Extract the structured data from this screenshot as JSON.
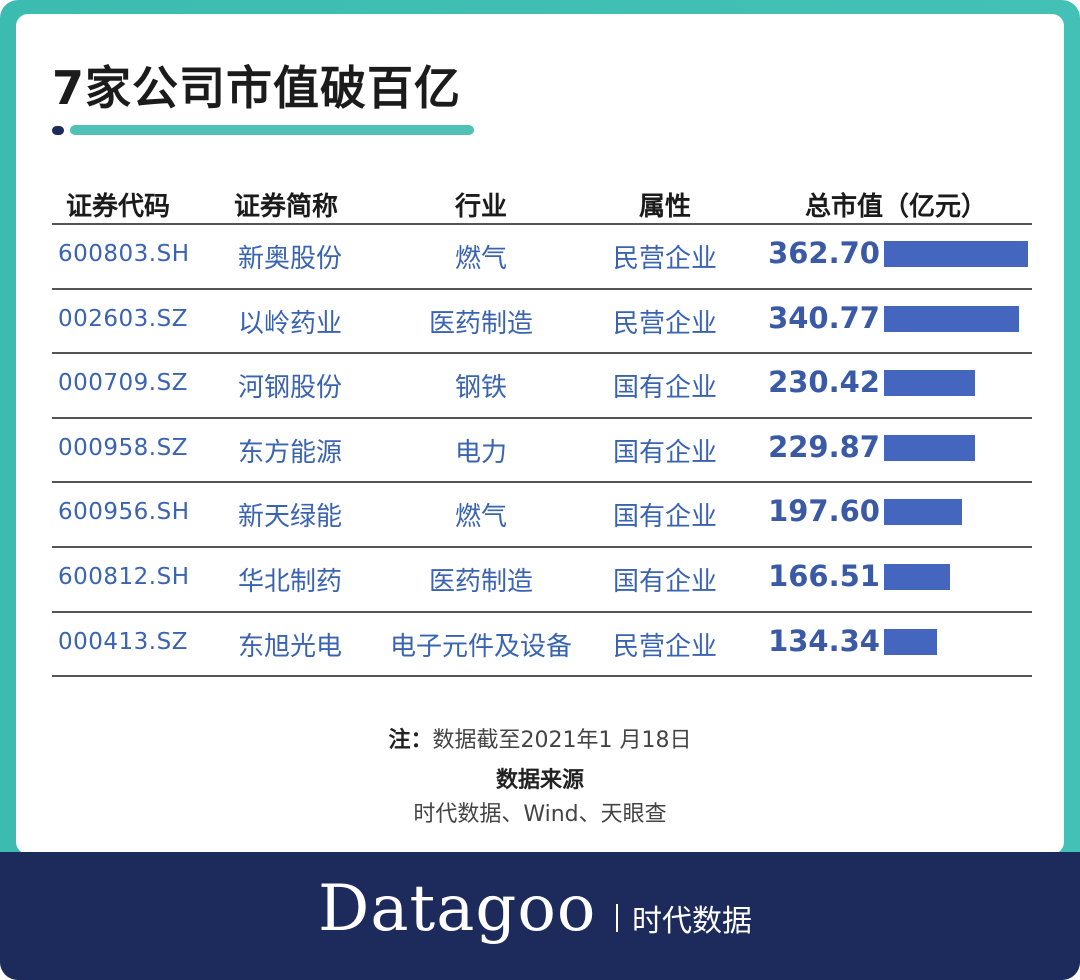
{
  "title": "7家公司市值破百亿",
  "table": {
    "headers": [
      "证券代码",
      "证券简称",
      "行业",
      "属性",
      "总市值（亿元）"
    ],
    "rows": [
      {
        "code": "600803.SH",
        "name": "新奥股份",
        "industry": "燃气",
        "type": "民营企业",
        "value": "362.70"
      },
      {
        "code": "002603.SZ",
        "name": "以岭药业",
        "industry": "医药制造",
        "type": "民营企业",
        "value": "340.77"
      },
      {
        "code": "000709.SZ",
        "name": "河钢股份",
        "industry": "钢铁",
        "type": "国有企业",
        "value": "230.42"
      },
      {
        "code": "000958.SZ",
        "name": "东方能源",
        "industry": "电力",
        "type": "国有企业",
        "value": "229.87"
      },
      {
        "code": "600956.SH",
        "name": "新天绿能",
        "industry": "燃气",
        "type": "国有企业",
        "value": "197.60"
      },
      {
        "code": "600812.SH",
        "name": "华北制药",
        "industry": "医药制造",
        "type": "国有企业",
        "value": "166.51"
      },
      {
        "code": "000413.SZ",
        "name": "东旭光电",
        "industry": "电子元件及设备",
        "type": "民营企业",
        "value": "134.34"
      }
    ]
  },
  "chart_data": {
    "type": "bar",
    "categories": [
      "新奥股份",
      "以岭药业",
      "河钢股份",
      "东方能源",
      "新天绿能",
      "华北制药",
      "东旭光电"
    ],
    "values": [
      362.7,
      340.77,
      230.42,
      229.87,
      197.6,
      166.51,
      134.34
    ],
    "title": "7家公司市值破百亿",
    "ylabel": "总市值（亿元）"
  },
  "note": {
    "label": "注：",
    "text": "数据截至2021年1 月18日",
    "source_label": "数据来源",
    "source_text": "时代数据、Wind、天眼查"
  },
  "footer": {
    "brand": "Datagoo",
    "brand_cn": "时代数据"
  },
  "colors": {
    "frame": "#44c1b6",
    "accent_line": "#4fc1b5",
    "bar": "#4566bf",
    "text_blue": "#3a63b2",
    "footer_bg": "#1d2a5c"
  }
}
